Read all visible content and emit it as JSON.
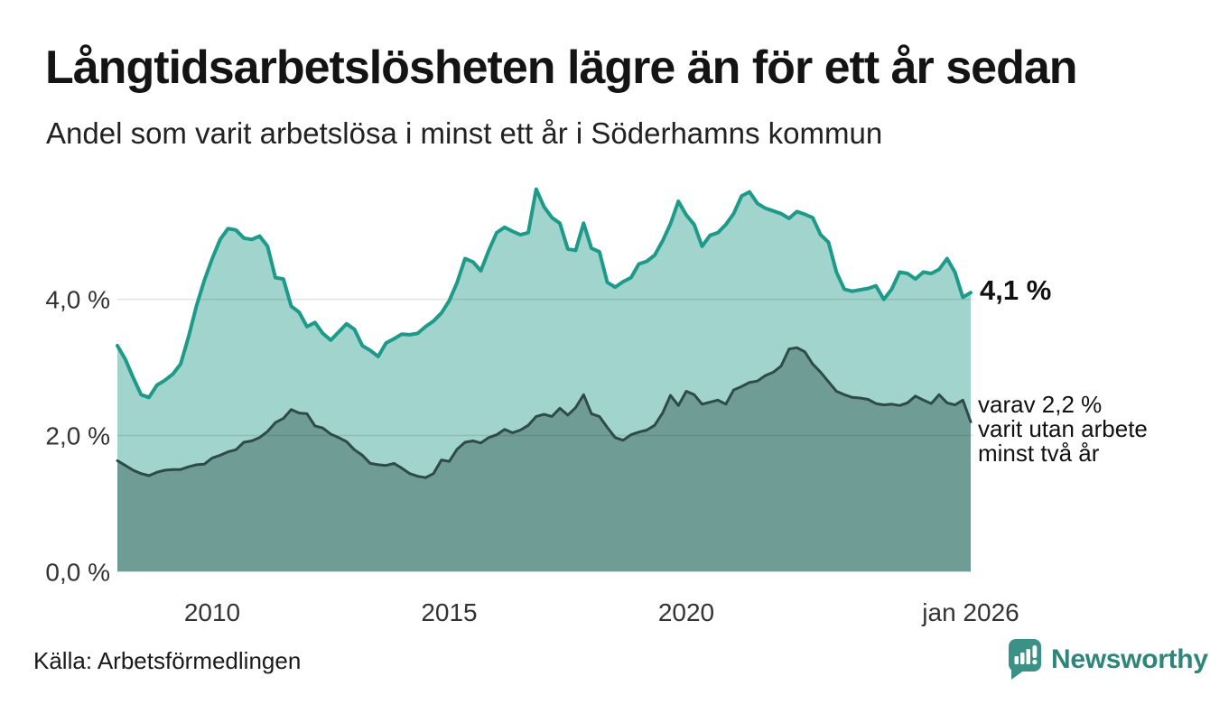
{
  "title": "Långtidsarbetslösheten lägre än för ett år sedan",
  "subtitle": "Andel som varit arbetslösa i minst ett år i Söderhamns kommun",
  "source": "Källa: Arbetsförmedlingen",
  "branding": {
    "name": "Newsworthy",
    "color": "#2e8579",
    "icon_color": "#3b9186"
  },
  "annotations": {
    "latest_total": "4,1 %",
    "varav_lines": [
      "varav 2,2 %",
      "varit utan arbete",
      "minst två år"
    ]
  },
  "chart_data": {
    "type": "area",
    "title": "Långtidsarbetslösheten lägre än för ett år sedan",
    "x_start": 2008,
    "x_end": 2026,
    "points_per_year": 6,
    "x_ticks": [
      {
        "year": 2010,
        "label": "2010"
      },
      {
        "year": 2015,
        "label": "2015"
      },
      {
        "year": 2020,
        "label": "2020"
      },
      {
        "year": 2026,
        "label": "jan 2026"
      }
    ],
    "y_ticks": [
      {
        "value": 0,
        "label": "0,0 %"
      },
      {
        "value": 2,
        "label": "2,0 %"
      },
      {
        "value": 4,
        "label": "4,0 %"
      }
    ],
    "ylim": [
      0,
      5.9
    ],
    "grid": "horizontal",
    "legend": "none",
    "unit": "percent",
    "series": [
      {
        "name": "Arbetslösa minst ett år",
        "line_color": "#1d9a89",
        "fill_color": "#a0d4cd",
        "latest_value_pct": 4.1,
        "values": [
          3.32,
          3.12,
          2.85,
          2.6,
          2.56,
          2.74,
          2.81,
          2.9,
          3.05,
          3.45,
          3.9,
          4.28,
          4.6,
          4.88,
          5.04,
          5.02,
          4.9,
          4.88,
          4.93,
          4.78,
          4.32,
          4.3,
          3.9,
          3.81,
          3.6,
          3.66,
          3.5,
          3.4,
          3.52,
          3.64,
          3.56,
          3.32,
          3.25,
          3.16,
          3.36,
          3.42,
          3.49,
          3.48,
          3.5,
          3.6,
          3.68,
          3.8,
          3.98,
          4.25,
          4.6,
          4.55,
          4.42,
          4.72,
          4.98,
          5.06,
          5.0,
          4.95,
          4.98,
          5.62,
          5.36,
          5.2,
          5.12,
          4.74,
          4.72,
          5.12,
          4.75,
          4.7,
          4.25,
          4.18,
          4.26,
          4.32,
          4.52,
          4.56,
          4.65,
          4.86,
          5.11,
          5.44,
          5.24,
          5.1,
          4.78,
          4.94,
          4.98,
          5.1,
          5.26,
          5.52,
          5.58,
          5.41,
          5.34,
          5.3,
          5.26,
          5.19,
          5.29,
          5.25,
          5.2,
          4.95,
          4.84,
          4.4,
          4.15,
          4.12,
          4.14,
          4.16,
          4.2,
          4.0,
          4.15,
          4.4,
          4.38,
          4.3,
          4.4,
          4.38,
          4.44,
          4.6,
          4.4,
          4.03,
          4.1
        ]
      },
      {
        "name": "varav arbetslösa minst två år",
        "line_color": "#2e4b47",
        "fill_color": "#709c96",
        "latest_value_pct": 2.2,
        "values": [
          1.63,
          1.56,
          1.49,
          1.44,
          1.41,
          1.46,
          1.49,
          1.5,
          1.5,
          1.54,
          1.57,
          1.58,
          1.67,
          1.71,
          1.76,
          1.79,
          1.9,
          1.92,
          1.97,
          2.06,
          2.19,
          2.25,
          2.38,
          2.33,
          2.32,
          2.14,
          2.11,
          2.02,
          1.97,
          1.91,
          1.79,
          1.71,
          1.59,
          1.57,
          1.56,
          1.59,
          1.52,
          1.44,
          1.4,
          1.38,
          1.44,
          1.64,
          1.62,
          1.8,
          1.9,
          1.92,
          1.89,
          1.97,
          2.01,
          2.09,
          2.04,
          2.08,
          2.15,
          2.28,
          2.31,
          2.28,
          2.4,
          2.3,
          2.41,
          2.6,
          2.32,
          2.28,
          2.12,
          1.97,
          1.93,
          2.01,
          2.05,
          2.08,
          2.15,
          2.33,
          2.59,
          2.44,
          2.65,
          2.6,
          2.46,
          2.49,
          2.52,
          2.46,
          2.67,
          2.72,
          2.78,
          2.8,
          2.88,
          2.93,
          3.02,
          3.27,
          3.29,
          3.23,
          3.05,
          2.93,
          2.79,
          2.65,
          2.6,
          2.56,
          2.55,
          2.53,
          2.47,
          2.45,
          2.46,
          2.44,
          2.48,
          2.58,
          2.52,
          2.47,
          2.6,
          2.48,
          2.45,
          2.52,
          2.2
        ]
      }
    ]
  }
}
